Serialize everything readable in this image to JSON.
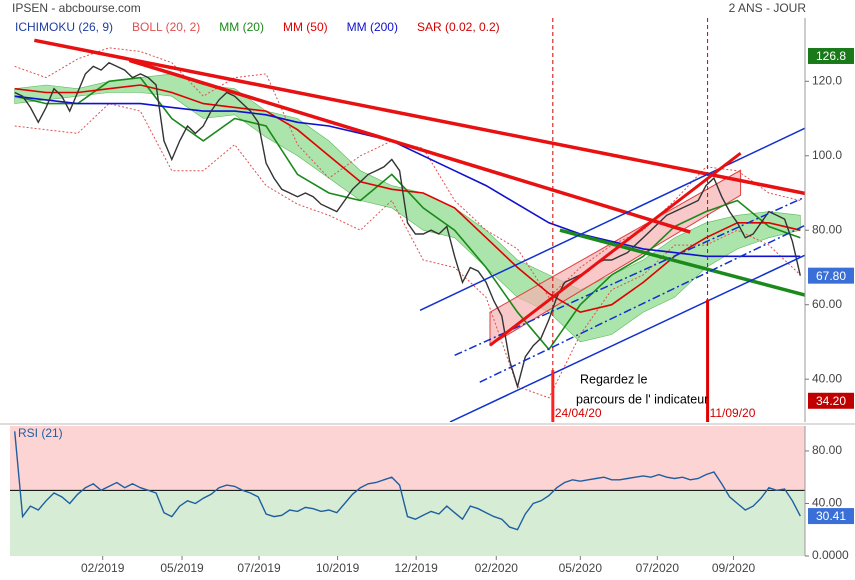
{
  "chart_data": [
    {
      "type": "line",
      "title": "IPSEN - abcbourse.com",
      "subtitle": "2 ANS - JOUR",
      "x": [
        0,
        1,
        2,
        3,
        4,
        5,
        6,
        7,
        8,
        9,
        10,
        11,
        12,
        13,
        14,
        15,
        16,
        17,
        18,
        19,
        20,
        21,
        22,
        23,
        24,
        25,
        26,
        27,
        28,
        29,
        30,
        31,
        32,
        33,
        34,
        35,
        36,
        37,
        38,
        39,
        40,
        41,
        42,
        43,
        44,
        45,
        46,
        47,
        48,
        49,
        50,
        51,
        52,
        53,
        54,
        55,
        56,
        57,
        58,
        59,
        60,
        61,
        62,
        63,
        64,
        65,
        66,
        67,
        68,
        69,
        70,
        71,
        72,
        73,
        74,
        75,
        76,
        77,
        78,
        79,
        80,
        81,
        82,
        83,
        84,
        85,
        86,
        87,
        88,
        89,
        90,
        91,
        92,
        93,
        94,
        95,
        96,
        97,
        98,
        99,
        100
      ],
      "values": [
        117,
        116,
        113,
        109,
        113,
        118,
        116,
        112,
        117,
        122,
        124,
        123,
        125,
        124,
        123,
        121,
        122,
        121,
        119,
        104,
        99,
        104,
        108,
        106,
        108,
        112,
        115,
        117,
        116,
        114,
        112,
        109,
        98,
        94,
        91,
        90,
        89,
        90,
        89,
        87,
        86,
        85,
        88,
        91,
        93,
        95,
        96,
        97,
        99,
        96,
        82,
        79,
        79,
        80,
        79,
        81,
        73,
        66,
        70,
        69,
        66,
        61,
        57,
        45,
        38,
        46,
        49,
        51,
        56,
        62,
        66,
        67,
        68,
        69,
        71,
        72,
        72,
        73,
        74,
        76,
        78,
        80,
        82,
        84,
        85,
        86,
        87,
        88,
        92,
        94,
        89,
        85,
        82,
        78,
        79,
        82,
        85,
        84,
        83,
        77,
        67.8
      ],
      "color": "#333333",
      "xlim": [
        -0.6,
        100.6
      ],
      "ylim": [
        28.5,
        137
      ],
      "yticks": [
        {
          "value": 40,
          "label": "40.00"
        },
        {
          "value": 60,
          "label": "60.00"
        },
        {
          "value": 80,
          "label": "80.00"
        },
        {
          "value": 100,
          "label": "100.0"
        },
        {
          "value": 120,
          "label": "120.0"
        }
      ],
      "series": [
        {
          "name": "ICHIMOKU (26, 9)",
          "color": "#1f3f9f",
          "style": "cloud",
          "fill": "#8fdc8f",
          "x": [
            0,
            4,
            8,
            12,
            16,
            20,
            24,
            28,
            32,
            36,
            40,
            44,
            48,
            52,
            56,
            60,
            64,
            68,
            72,
            76,
            80,
            84,
            88,
            92,
            96,
            100
          ],
          "values": [
            118,
            119,
            118,
            120,
            121,
            122,
            119,
            118,
            112,
            110,
            104,
            96,
            92,
            90,
            86,
            80,
            72,
            68,
            64,
            68,
            72,
            78,
            82,
            84,
            85,
            84
          ],
          "lower": [
            114,
            115,
            116,
            117,
            117,
            116,
            110,
            111,
            105,
            100,
            94,
            88,
            86,
            80,
            78,
            70,
            62,
            58,
            50,
            52,
            58,
            62,
            70,
            75,
            78,
            80
          ]
        },
        {
          "name": "BOLL (20, 2)",
          "color": "#e05050",
          "style": "dotted",
          "x": [
            0,
            4,
            8,
            12,
            16,
            20,
            24,
            28,
            32,
            36,
            40,
            44,
            48,
            52,
            56,
            60,
            64,
            68,
            72,
            76,
            80,
            84,
            88,
            92,
            96,
            100
          ],
          "values": [
            124,
            121,
            126,
            129,
            128,
            125,
            116,
            121,
            122,
            103,
            94,
            100,
            104,
            102,
            88,
            80,
            75,
            62,
            70,
            76,
            80,
            88,
            97,
            96,
            90,
            88
          ],
          "lower": [
            108,
            107,
            106,
            114,
            112,
            96,
            96,
            103,
            92,
            87,
            84,
            80,
            88,
            72,
            70,
            62,
            38,
            35,
            52,
            64,
            68,
            76,
            76,
            80,
            76,
            68
          ]
        },
        {
          "name": "MM (20)",
          "color": "#1a8a1a",
          "style": "line",
          "x": [
            0,
            4,
            8,
            12,
            16,
            20,
            24,
            28,
            32,
            36,
            40,
            44,
            48,
            52,
            56,
            60,
            64,
            68,
            72,
            76,
            80,
            84,
            88,
            92,
            96,
            100
          ],
          "values": [
            116,
            114,
            114,
            120,
            121,
            110,
            104,
            110,
            108,
            95,
            90,
            88,
            95,
            86,
            80,
            70,
            58,
            48,
            60,
            68,
            73,
            81,
            85,
            88,
            81,
            78
          ]
        },
        {
          "name": "MM (50)",
          "color": "#e00000",
          "style": "line",
          "x": [
            0,
            4,
            8,
            12,
            16,
            20,
            24,
            28,
            32,
            36,
            40,
            44,
            48,
            52,
            56,
            60,
            64,
            68,
            72,
            76,
            80,
            84,
            88,
            92,
            96,
            100
          ],
          "values": [
            118,
            117,
            117,
            118,
            119,
            117,
            114,
            113,
            112,
            107,
            100,
            93,
            91,
            90,
            86,
            78,
            70,
            63,
            58,
            60,
            66,
            73,
            78,
            82,
            82,
            80
          ]
        },
        {
          "name": "MM (200)",
          "color": "#1010d0",
          "style": "line",
          "x": [
            0,
            4,
            8,
            12,
            16,
            20,
            24,
            28,
            32,
            36,
            40,
            44,
            48,
            52,
            56,
            60,
            64,
            68,
            72,
            76,
            80,
            84,
            88,
            92,
            96,
            100
          ],
          "values": [
            116,
            115,
            114,
            114,
            114,
            113,
            112,
            112,
            111,
            109,
            108,
            106,
            104,
            100,
            96,
            92,
            87,
            82,
            79,
            77,
            75,
            74,
            73,
            73,
            73,
            73
          ]
        },
        {
          "name": "SAR (0.02, 0.2)",
          "color": "#d00000",
          "style": "points",
          "x": [
            0,
            100
          ],
          "values": [
            null,
            null
          ]
        }
      ],
      "lines": [
        {
          "color": "#e81010",
          "width": 3.5,
          "dash": "none",
          "x": [
            2.5,
            100.6
          ],
          "values": [
            131.0,
            89.9
          ]
        },
        {
          "color": "#e81010",
          "width": 3.5,
          "dash": "none",
          "x": [
            14.6,
            86
          ],
          "values": [
            125.6,
            79.5
          ]
        },
        {
          "color": "#1a8a1a",
          "width": 3.5,
          "dash": "none",
          "x": [
            69.4,
            100.6
          ],
          "values": [
            80,
            62.6
          ]
        },
        {
          "color": "#1030d0",
          "width": 1.5,
          "dash": "none",
          "x": [
            51.6,
            100.6
          ],
          "values": [
            58.5,
            107.4
          ]
        },
        {
          "color": "#1030d0",
          "width": 1.5,
          "dash": "8 3 2 3",
          "x": [
            56,
            100.6
          ],
          "values": [
            46.4,
            88.9
          ]
        },
        {
          "color": "#1030d0",
          "width": 1.5,
          "dash": "8 3 2 3",
          "x": [
            59.2,
            100.6
          ],
          "values": [
            39.2,
            81.3
          ]
        },
        {
          "color": "#1030d0",
          "width": 1.5,
          "dash": "none",
          "x": [
            55.4,
            100.6
          ],
          "values": [
            28.5,
            73.3
          ]
        },
        {
          "color": "#e81010",
          "width": 3,
          "dash": "none",
          "x": [
            60.5,
            92.4
          ],
          "values": [
            49.1,
            100.7
          ]
        },
        {
          "color": "#ff2020",
          "width": 3,
          "dash": "none",
          "x": [
            68.5,
            68.5
          ],
          "values": [
            42.4,
            28.5
          ]
        },
        {
          "color": "#e00000",
          "width": 3,
          "dash": "none",
          "x": [
            88.2,
            88.2
          ],
          "values": [
            61.4,
            28.5
          ]
        }
      ],
      "bands": [
        {
          "color": "#f7b0b0",
          "x": [
            60.5,
            92.4
          ],
          "values": [
            58.0,
            96.1
          ],
          "lower": [
            49.1,
            89.4
          ]
        }
      ],
      "vlines": [
        {
          "x": 68.5,
          "label": "24/04/20",
          "color": "#d00000"
        },
        {
          "x": 88.2,
          "label": "11/09/20",
          "color": "#d00000"
        }
      ],
      "annotations": [
        "Regardez le",
        "parcours de l' indicateur"
      ],
      "markers": [
        {
          "value": 126.8,
          "label": "126.8",
          "color": "#1a7a1a"
        },
        {
          "value": 67.8,
          "label": "67.80",
          "color": "#3a6fd8"
        },
        {
          "value": 34.2,
          "label": "34.20",
          "color": "#c00000"
        }
      ]
    },
    {
      "type": "line",
      "title": "RSI (21)",
      "x": [
        0,
        1,
        2,
        3,
        4,
        5,
        6,
        7,
        8,
        9,
        10,
        11,
        12,
        13,
        14,
        15,
        16,
        17,
        18,
        19,
        20,
        21,
        22,
        23,
        24,
        25,
        26,
        27,
        28,
        29,
        30,
        31,
        32,
        33,
        34,
        35,
        36,
        37,
        38,
        39,
        40,
        41,
        42,
        43,
        44,
        45,
        46,
        47,
        48,
        49,
        50,
        51,
        52,
        53,
        54,
        55,
        56,
        57,
        58,
        59,
        60,
        61,
        62,
        63,
        64,
        65,
        66,
        67,
        68,
        69,
        70,
        71,
        72,
        73,
        74,
        75,
        76,
        77,
        78,
        79,
        80,
        81,
        82,
        83,
        84,
        85,
        86,
        87,
        88,
        89,
        90,
        91,
        92,
        93,
        94,
        95,
        96,
        97,
        98,
        99,
        100
      ],
      "values": [
        95,
        30,
        38,
        35,
        42,
        48,
        45,
        40,
        47,
        52,
        55,
        50,
        53,
        56,
        52,
        55,
        52,
        50,
        48,
        33,
        30,
        38,
        42,
        40,
        44,
        47,
        52,
        54,
        53,
        50,
        48,
        45,
        32,
        30,
        31,
        35,
        34,
        37,
        36,
        34,
        35,
        33,
        40,
        47,
        52,
        55,
        56,
        58,
        60,
        54,
        30,
        28,
        31,
        34,
        32,
        38,
        33,
        28,
        38,
        36,
        33,
        30,
        28,
        22,
        20,
        32,
        40,
        42,
        46,
        52,
        56,
        58,
        57,
        58,
        59,
        60,
        58,
        58,
        59,
        60,
        61,
        60,
        62,
        60,
        59,
        60,
        58,
        59,
        62,
        64,
        55,
        45,
        40,
        35,
        38,
        44,
        52,
        50,
        51,
        42,
        30.41
      ],
      "color": "#1f5fa0",
      "xlim": [
        -0.6,
        100.6
      ],
      "ylim": [
        0,
        99
      ],
      "yticks": [
        {
          "value": 0,
          "label": "0.0000"
        },
        {
          "value": 40,
          "label": "40.00"
        },
        {
          "value": 80,
          "label": "80.00"
        }
      ],
      "xticks": [
        {
          "value": 11.2,
          "label": "02/2019"
        },
        {
          "value": 21.3,
          "label": "05/2019"
        },
        {
          "value": 31.1,
          "label": "07/2019"
        },
        {
          "value": 41.1,
          "label": "10/2019"
        },
        {
          "value": 51.1,
          "label": "12/2019"
        },
        {
          "value": 61.3,
          "label": "02/2020"
        },
        {
          "value": 72.0,
          "label": "05/2020"
        },
        {
          "value": 81.8,
          "label": "07/2020"
        },
        {
          "value": 91.5,
          "label": "09/2020"
        }
      ],
      "midline": 50,
      "upper_fill": "#fcd4d4",
      "lower_fill": "#d6ecd4",
      "markers": [
        {
          "value": 30.41,
          "label": "30.41",
          "color": "#3a6fd8"
        }
      ]
    }
  ]
}
